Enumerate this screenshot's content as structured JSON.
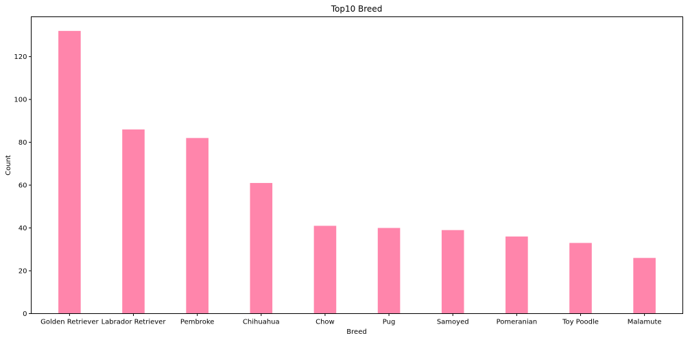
{
  "chart_data": {
    "type": "bar",
    "title": "Top10 Breed",
    "xlabel": "Breed",
    "ylabel": "Count",
    "categories": [
      "Golden Retriever",
      "Labrador Retriever",
      "Pembroke",
      "Chihuahua",
      "Chow",
      "Pug",
      "Samoyed",
      "Pomeranian",
      "Toy Poodle",
      "Malamute"
    ],
    "values": [
      132,
      86,
      82,
      61,
      41,
      40,
      39,
      36,
      33,
      26
    ],
    "ylim": [
      0,
      138.6
    ],
    "yticks": [
      0,
      20,
      40,
      60,
      80,
      100,
      120
    ],
    "bar_color": "#ff85ab",
    "grid": false,
    "legend": "none"
  }
}
